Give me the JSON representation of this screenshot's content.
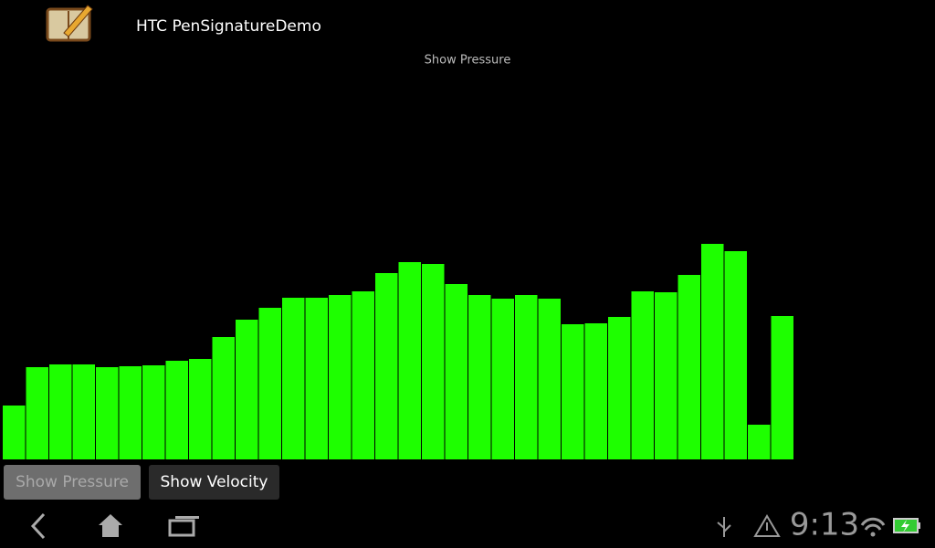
{
  "app": {
    "title": "HTC PenSignatureDemo"
  },
  "chart_data": {
    "type": "bar",
    "title": "Show Pressure",
    "values": [
      59,
      101,
      104,
      104,
      101,
      102,
      103,
      108,
      110,
      134,
      153,
      166,
      177,
      177,
      180,
      184,
      204,
      216,
      214,
      192,
      180,
      176,
      180,
      176,
      148,
      149,
      156,
      184,
      183,
      202,
      236,
      228,
      38,
      157
    ],
    "color": "#1eff00",
    "ylim": [
      0,
      500
    ]
  },
  "buttons": [
    "Show Pressure",
    "Show Velocity"
  ],
  "status": {
    "time": "9:13"
  }
}
